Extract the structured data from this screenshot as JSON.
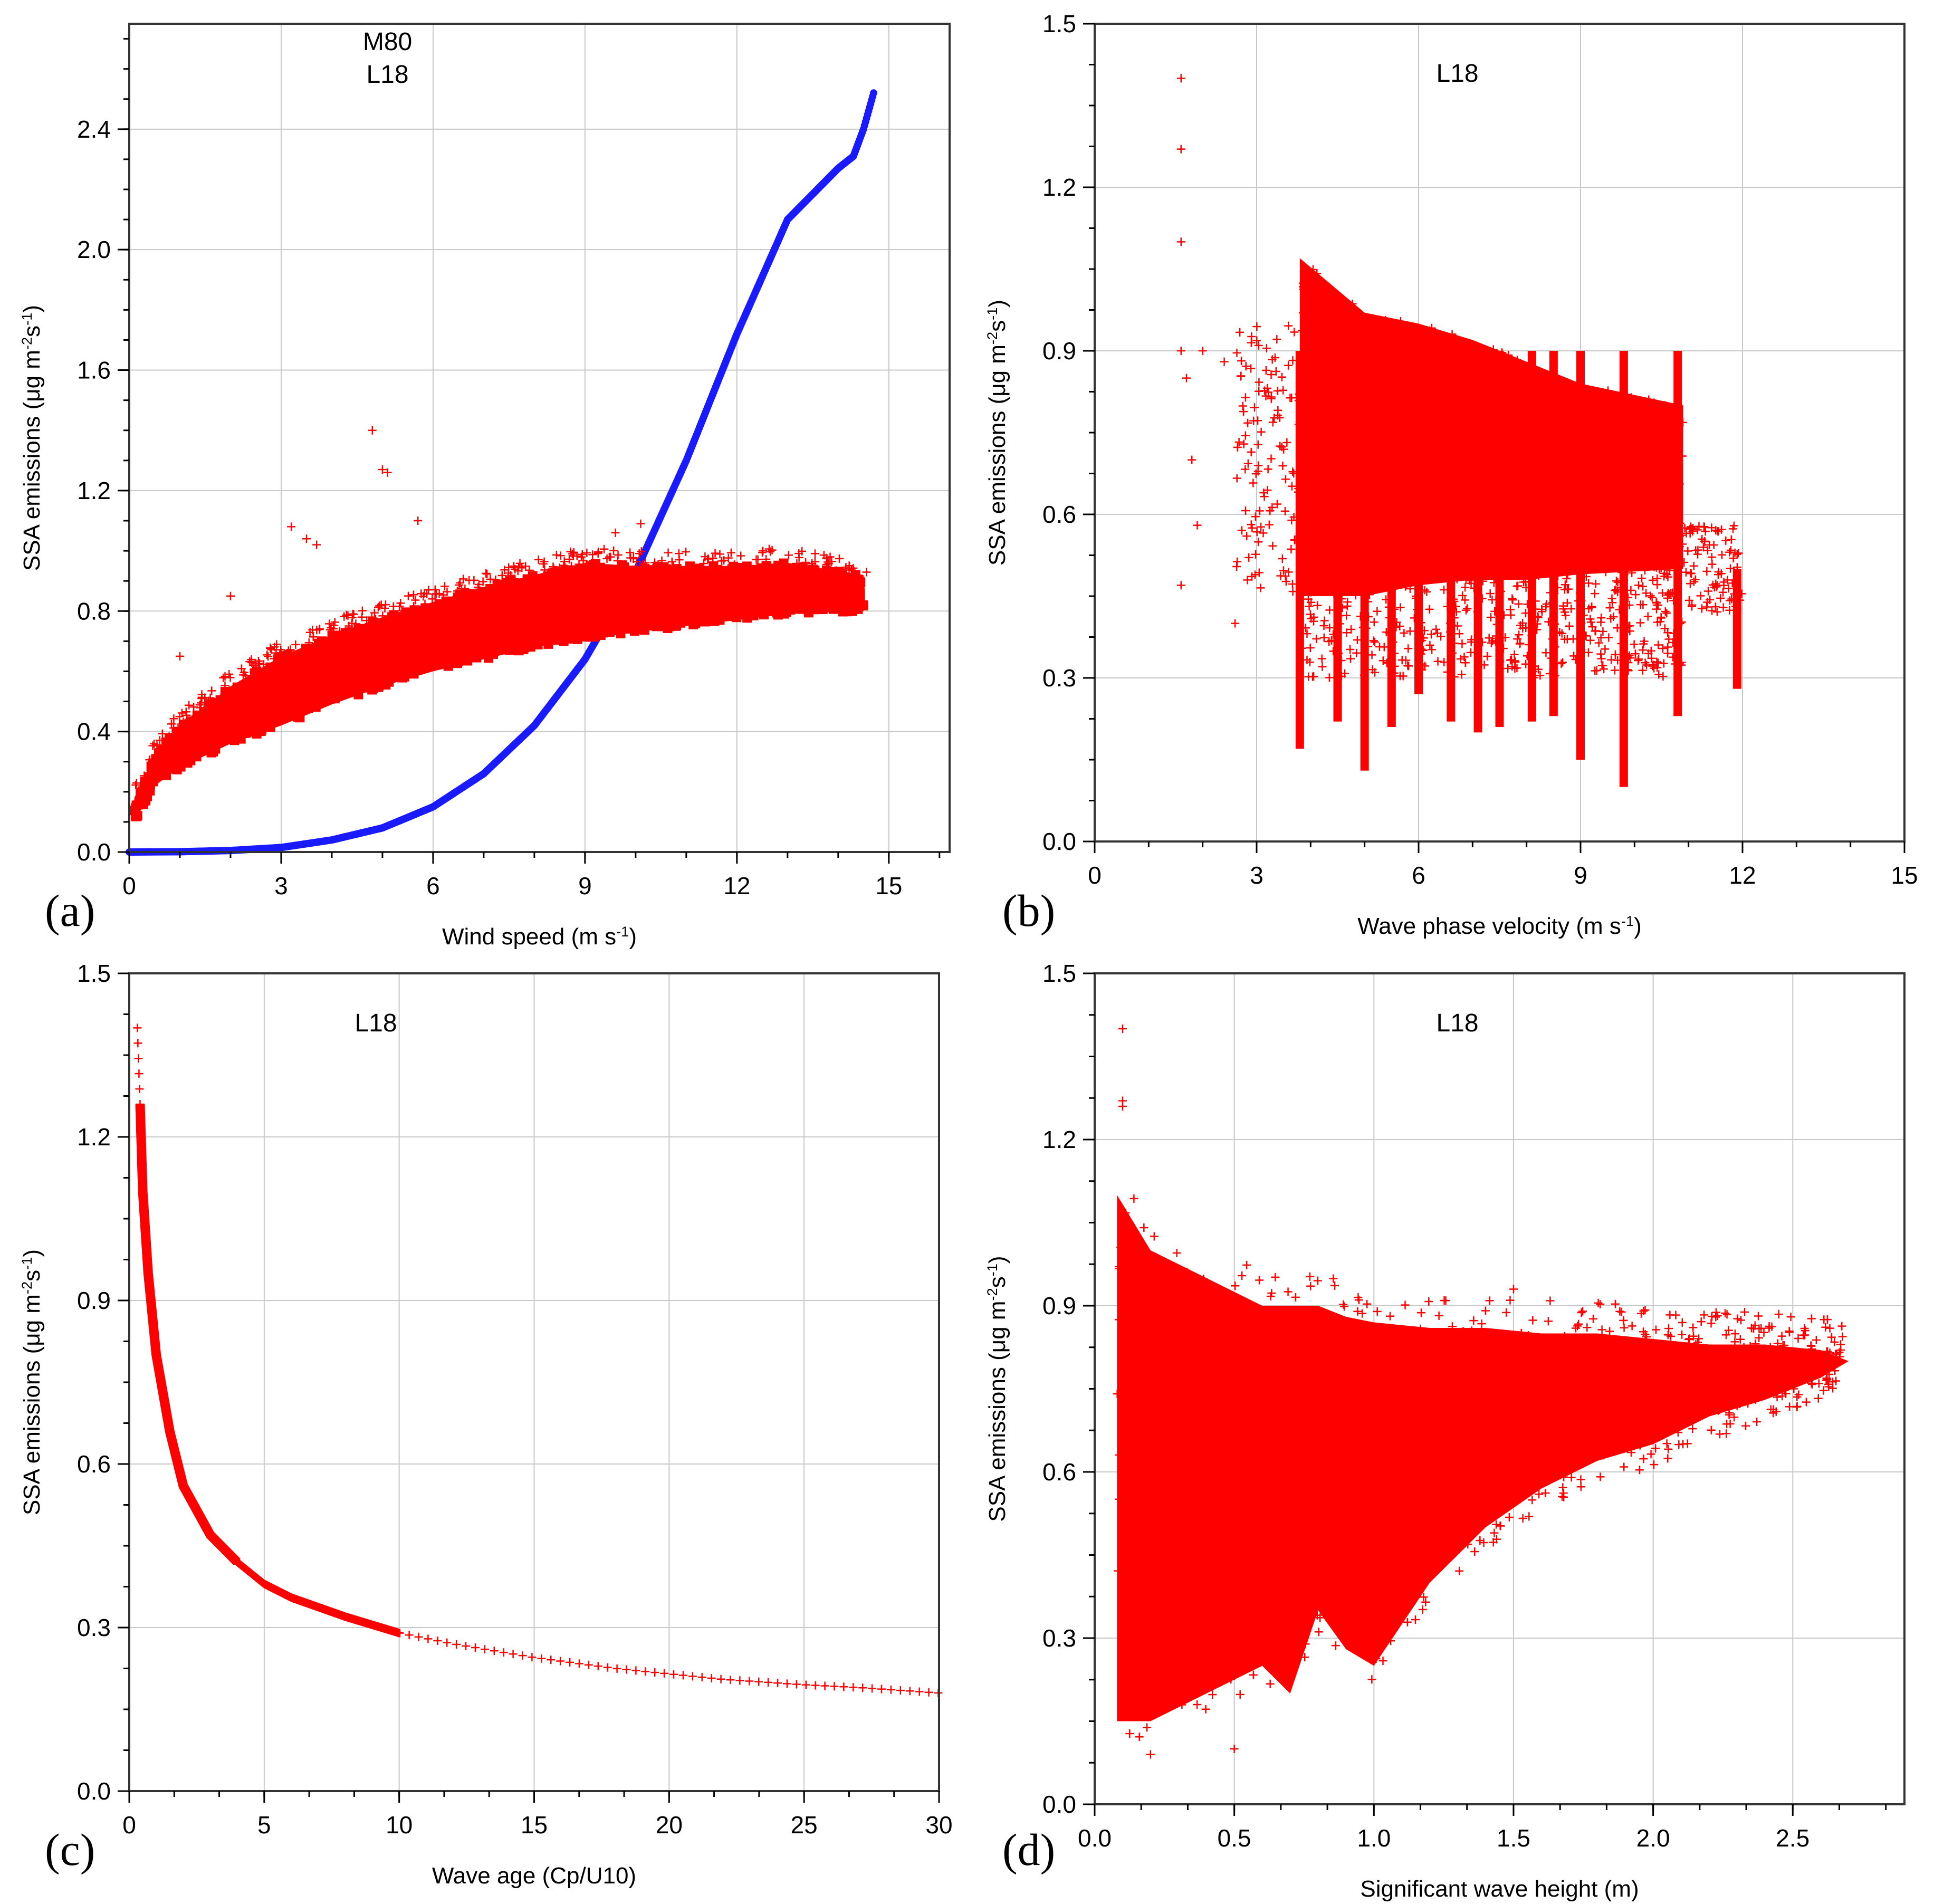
{
  "figure": {
    "panel_letters": [
      "(a)",
      "(b)",
      "(c)",
      "(d)"
    ]
  },
  "colors": {
    "m80": "#1a1aff",
    "l18": "#ff0000",
    "grid": "#c8c8c8"
  },
  "chart_data": [
    {
      "id": "a",
      "type": "scatter",
      "title": "",
      "xlabel": "Wind speed (m s",
      "xlabel_sup": "-1",
      "xlabel_end": ")",
      "ylabel": "SSA emissions (μg m",
      "ylabel_sup1": "-2",
      "ylabel_mid": "s",
      "ylabel_sup2": "-1",
      "ylabel_end": ")",
      "xlim": [
        0,
        16.2
      ],
      "ylim": [
        0,
        2.75
      ],
      "xticks": [
        0,
        3,
        6,
        9,
        12,
        15
      ],
      "xtick_labels": [
        "0",
        "3",
        "6",
        "9",
        "12",
        "15"
      ],
      "yticks": [
        0.0,
        0.4,
        0.8,
        1.2,
        1.6,
        2.0,
        2.4
      ],
      "ytick_labels": [
        "0.0",
        "0.4",
        "0.8",
        "1.2",
        "1.6",
        "2.0",
        "2.4"
      ],
      "legend": [
        "M80",
        "L18"
      ],
      "legend_position": "top-center",
      "series": [
        {
          "name": "M80",
          "marker": "dot",
          "x": [
            0,
            1,
            2,
            3,
            4,
            5,
            6,
            7,
            8,
            9,
            10,
            11,
            12,
            13,
            14,
            14.3,
            14.5,
            14.7
          ],
          "y": [
            0.0,
            0.001,
            0.005,
            0.015,
            0.04,
            0.08,
            0.15,
            0.26,
            0.42,
            0.64,
            0.93,
            1.3,
            1.72,
            2.1,
            2.27,
            2.31,
            2.4,
            2.52
          ]
        },
        {
          "name": "L18",
          "marker": "plus",
          "x": [
            0.1,
            0.5,
            1,
            2,
            3,
            4,
            5,
            6,
            7,
            8,
            9,
            10,
            11,
            12,
            13,
            14.5
          ],
          "y_upper": [
            0.18,
            0.32,
            0.42,
            0.55,
            0.65,
            0.72,
            0.78,
            0.83,
            0.88,
            0.92,
            0.96,
            0.95,
            0.95,
            0.95,
            0.96,
            0.92
          ],
          "y_lower": [
            0.1,
            0.22,
            0.28,
            0.36,
            0.42,
            0.49,
            0.55,
            0.6,
            0.64,
            0.68,
            0.71,
            0.73,
            0.75,
            0.77,
            0.79,
            0.8
          ],
          "outliers_x": [
            4.8,
            5.0,
            5.1,
            3.5,
            3.7,
            1.0,
            2.0,
            9.6,
            10.1,
            5.7,
            3.2
          ],
          "outliers_y": [
            1.4,
            1.27,
            1.26,
            1.04,
            1.02,
            0.65,
            0.85,
            1.06,
            1.09,
            1.1,
            1.08
          ]
        }
      ]
    },
    {
      "id": "b",
      "type": "scatter",
      "title": "",
      "xlabel": "Wave phase velocity (m s",
      "xlabel_sup": "-1",
      "xlabel_end": ")",
      "ylabel": "SSA emissions (μg m",
      "ylabel_sup1": "-2",
      "ylabel_mid": "s",
      "ylabel_sup2": "-1",
      "ylabel_end": ")",
      "xlim": [
        0,
        15
      ],
      "ylim": [
        0,
        1.5
      ],
      "xticks": [
        0,
        3,
        6,
        9,
        12,
        15
      ],
      "xtick_labels": [
        "0",
        "3",
        "6",
        "9",
        "12",
        "15"
      ],
      "yticks": [
        0.0,
        0.3,
        0.6,
        0.9,
        1.2,
        1.5
      ],
      "ytick_labels": [
        "0.0",
        "0.3",
        "0.6",
        "0.9",
        "1.2",
        "1.5"
      ],
      "legend": [
        "L18"
      ],
      "legend_position": "top-center",
      "series": [
        {
          "name": "L18",
          "marker": "plus",
          "x_range": [
            3.8,
            10.9
          ],
          "y_upper": [
            1.07,
            0.97,
            0.95,
            0.92,
            0.88,
            0.84,
            0.8
          ],
          "y_lower": [
            0.45,
            0.45,
            0.47,
            0.48,
            0.48,
            0.49,
            0.5
          ],
          "stripe_x": [
            3.8,
            4.5,
            5.0,
            5.5,
            6.0,
            6.6,
            7.1,
            7.5,
            8.1,
            8.5,
            9.0,
            9.8,
            10.8,
            11.9
          ],
          "stripe_min_y": [
            0.17,
            0.22,
            0.13,
            0.21,
            0.27,
            0.22,
            0.2,
            0.21,
            0.22,
            0.23,
            0.15,
            0.1,
            0.23,
            0.28
          ],
          "outliers_x": [
            1.6,
            1.6,
            1.6,
            1.6,
            1.7,
            1.8,
            2.0,
            2.4,
            2.6,
            1.6,
            1.9
          ],
          "outliers_y": [
            1.4,
            1.27,
            1.1,
            0.9,
            0.85,
            0.7,
            0.9,
            0.88,
            0.4,
            0.47,
            0.58
          ]
        }
      ]
    },
    {
      "id": "c",
      "type": "scatter",
      "title": "",
      "xlabel": "Wave age (Cp/U10)",
      "ylabel": "SSA emissions (μg m",
      "ylabel_sup1": "-2",
      "ylabel_mid": "s",
      "ylabel_sup2": "-1",
      "ylabel_end": ")",
      "xlim": [
        0,
        30
      ],
      "ylim": [
        0,
        1.5
      ],
      "xticks": [
        0,
        5,
        10,
        15,
        20,
        25,
        30
      ],
      "xtick_labels": [
        "0",
        "5",
        "10",
        "15",
        "20",
        "25",
        "30"
      ],
      "yticks": [
        0.0,
        0.3,
        0.6,
        0.9,
        1.2,
        1.5
      ],
      "ytick_labels": [
        "0.0",
        "0.3",
        "0.6",
        "0.9",
        "1.2",
        "1.5"
      ],
      "legend": [
        "L18"
      ],
      "legend_position": "top-center",
      "series": [
        {
          "name": "L18",
          "marker": "plus",
          "x": [
            0.3,
            0.4,
            0.5,
            0.7,
            1.0,
            1.5,
            2,
            3,
            4,
            5,
            6,
            8,
            10,
            12,
            15,
            18,
            20,
            22,
            25,
            27,
            28.5,
            30
          ],
          "y": [
            1.4,
            1.26,
            1.1,
            0.95,
            0.8,
            0.66,
            0.56,
            0.47,
            0.42,
            0.38,
            0.355,
            0.32,
            0.29,
            0.27,
            0.245,
            0.225,
            0.215,
            0.205,
            0.195,
            0.19,
            0.185,
            0.18
          ]
        }
      ]
    },
    {
      "id": "d",
      "type": "scatter",
      "title": "",
      "xlabel": "Significant wave height (m)",
      "ylabel": "SSA emissions (μg m",
      "ylabel_sup1": "-2",
      "ylabel_mid": "s",
      "ylabel_sup2": "-1",
      "ylabel_end": ")",
      "xlim": [
        0,
        2.9
      ],
      "ylim": [
        0,
        1.5
      ],
      "xticks": [
        0.0,
        0.5,
        1.0,
        1.5,
        2.0,
        2.5
      ],
      "xtick_labels": [
        "0.0",
        "0.5",
        "1.0",
        "1.5",
        "2.0",
        "2.5"
      ],
      "yticks": [
        0.0,
        0.3,
        0.6,
        0.9,
        1.2,
        1.5
      ],
      "ytick_labels": [
        "0.0",
        "0.3",
        "0.6",
        "0.9",
        "1.2",
        "1.5"
      ],
      "legend": [
        "L18"
      ],
      "legend_position": "top-center",
      "series": [
        {
          "name": "L18",
          "marker": "plus",
          "x": [
            0.08,
            0.2,
            0.4,
            0.6,
            0.7,
            0.8,
            0.9,
            1.0,
            1.2,
            1.4,
            1.6,
            1.8,
            2.0,
            2.2,
            2.4,
            2.6,
            2.7
          ],
          "y_upper": [
            1.1,
            1.0,
            0.95,
            0.9,
            0.9,
            0.9,
            0.88,
            0.87,
            0.86,
            0.86,
            0.85,
            0.85,
            0.84,
            0.83,
            0.83,
            0.82,
            0.8
          ],
          "y_lower": [
            0.15,
            0.15,
            0.2,
            0.25,
            0.2,
            0.35,
            0.28,
            0.25,
            0.4,
            0.5,
            0.57,
            0.62,
            0.65,
            0.7,
            0.73,
            0.77,
            0.8
          ],
          "outliers_x": [
            0.1,
            0.1,
            0.1,
            0.5,
            0.2,
            1.5
          ],
          "outliers_y": [
            1.4,
            1.27,
            1.26,
            0.1,
            0.09,
            0.93
          ]
        }
      ]
    }
  ]
}
